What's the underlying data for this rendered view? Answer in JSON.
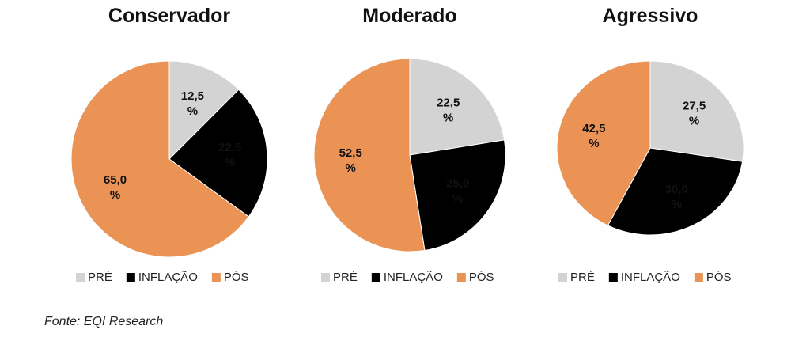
{
  "source": "Fonte: EQI Research",
  "colors": {
    "PRÉ": "#d3d3d3",
    "INFLAÇÃO": "#000000",
    "PÓS": "#ea9355"
  },
  "chart_data": [
    {
      "type": "pie",
      "title": "Conservador",
      "unit": "%",
      "slices": [
        {
          "label": "PRÉ",
          "value": 12.5,
          "display": "12,5"
        },
        {
          "label": "INFLAÇÃO",
          "value": 22.5,
          "display": "22,5"
        },
        {
          "label": "PÓS",
          "value": 65.0,
          "display": "65,0"
        }
      ],
      "legend": [
        "PRÉ",
        "INFLAÇÃO",
        "PÓS"
      ],
      "legend_position": "bottom"
    },
    {
      "type": "pie",
      "title": "Moderado",
      "unit": "%",
      "slices": [
        {
          "label": "PRÉ",
          "value": 22.5,
          "display": "22,5"
        },
        {
          "label": "INFLAÇÃO",
          "value": 25.0,
          "display": "25,0"
        },
        {
          "label": "PÓS",
          "value": 52.5,
          "display": "52,5"
        }
      ],
      "legend": [
        "PRÉ",
        "INFLAÇÃO",
        "PÓS"
      ],
      "legend_position": "bottom"
    },
    {
      "type": "pie",
      "title": "Agressivo",
      "unit": "%",
      "slices": [
        {
          "label": "PRÉ",
          "value": 27.5,
          "display": "27,5"
        },
        {
          "label": "INFLAÇÃO",
          "value": 30.0,
          "display": "30,0"
        },
        {
          "label": "PÓS",
          "value": 42.5,
          "display": "42,5"
        }
      ],
      "legend": [
        "PRÉ",
        "INFLAÇÃO",
        "PÓS"
      ],
      "legend_position": "bottom"
    }
  ]
}
